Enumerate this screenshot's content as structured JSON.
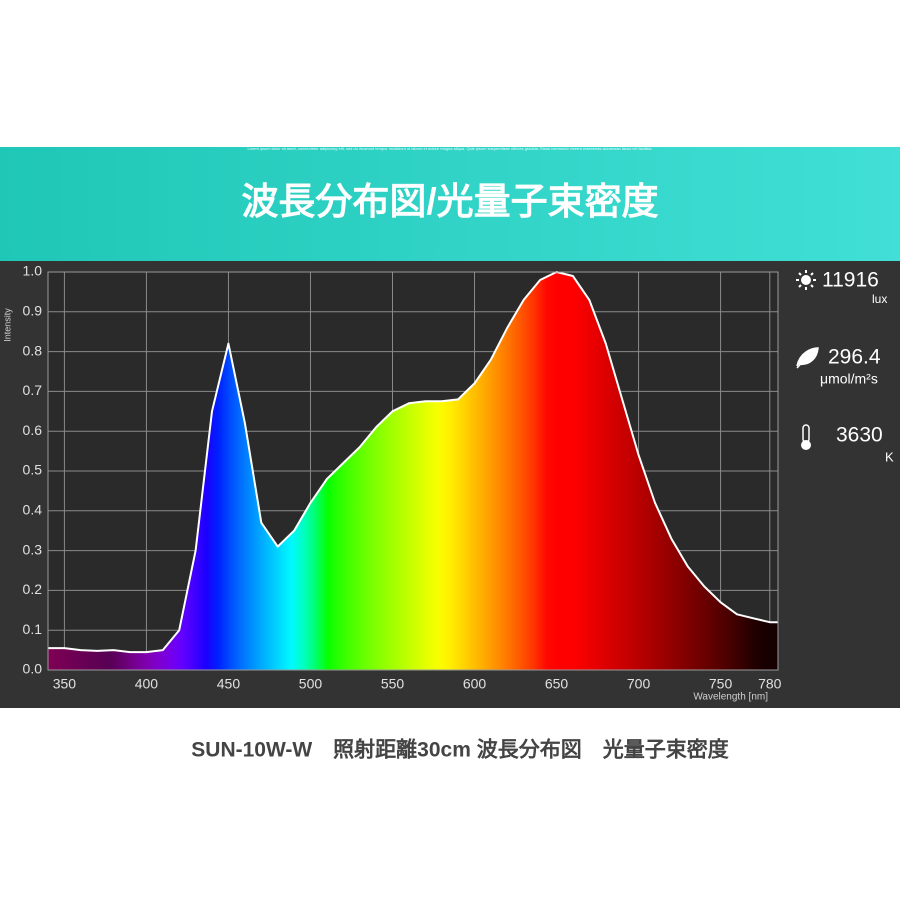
{
  "banner": {
    "fine_print": "Lorem ipsum dolor sit amet, consectetur adipiscing elit, sed do eiusmod tempor incididunt ut labore et dolore magna aliqua. Quis ipsum suspendisse ultrices gravida. Risus commodo viverra maecenas accumsan lacus vel facilisis.",
    "title": "波長分布図/光量子束密度"
  },
  "chart_data": {
    "type": "area",
    "y_label": "Intensity",
    "x_label": "Wavelength [nm]",
    "x": [
      340,
      350,
      360,
      370,
      380,
      390,
      400,
      410,
      420,
      430,
      440,
      450,
      460,
      470,
      480,
      490,
      500,
      510,
      520,
      530,
      540,
      550,
      560,
      570,
      580,
      590,
      600,
      610,
      620,
      630,
      640,
      650,
      660,
      670,
      680,
      690,
      700,
      710,
      720,
      730,
      740,
      750,
      760,
      770,
      780,
      785
    ],
    "values": [
      0.055,
      0.055,
      0.05,
      0.048,
      0.05,
      0.045,
      0.045,
      0.05,
      0.1,
      0.3,
      0.65,
      0.82,
      0.62,
      0.37,
      0.31,
      0.35,
      0.42,
      0.48,
      0.52,
      0.56,
      0.61,
      0.65,
      0.67,
      0.675,
      0.675,
      0.68,
      0.72,
      0.78,
      0.86,
      0.93,
      0.98,
      1.0,
      0.99,
      0.93,
      0.82,
      0.68,
      0.54,
      0.42,
      0.33,
      0.26,
      0.21,
      0.17,
      0.14,
      0.13,
      0.12,
      0.12
    ],
    "line_color": "#ffffff",
    "xlim": [
      340,
      785
    ],
    "xticks": [
      350,
      400,
      450,
      500,
      550,
      600,
      650,
      700,
      750,
      780
    ],
    "ylim": [
      0,
      1
    ],
    "yticks": [
      {
        "value": 0,
        "label": "0.0"
      },
      {
        "value": 0.1,
        "label": "0.1"
      },
      {
        "value": 0.2,
        "label": "0.2"
      },
      {
        "value": 0.3,
        "label": "0.3"
      },
      {
        "value": 0.4,
        "label": "0.4"
      },
      {
        "value": 0.5,
        "label": "0.5"
      },
      {
        "value": 0.6,
        "label": "0.6"
      },
      {
        "value": 0.7,
        "label": "0.7"
      },
      {
        "value": 0.8,
        "label": "0.8"
      },
      {
        "value": 0.9,
        "label": "0.9"
      },
      {
        "value": 1,
        "label": "1.0"
      }
    ],
    "grid": true
  },
  "metrics": {
    "illuminance": {
      "value": "11916",
      "unit": "lux"
    },
    "ppfd": {
      "value": "296.4",
      "unit": "μmol/m²s"
    },
    "color_temp": {
      "value": "3630",
      "unit": "K"
    }
  },
  "caption": "SUN-10W-W　照射距離30cm 波長分布図　光量子束密度"
}
